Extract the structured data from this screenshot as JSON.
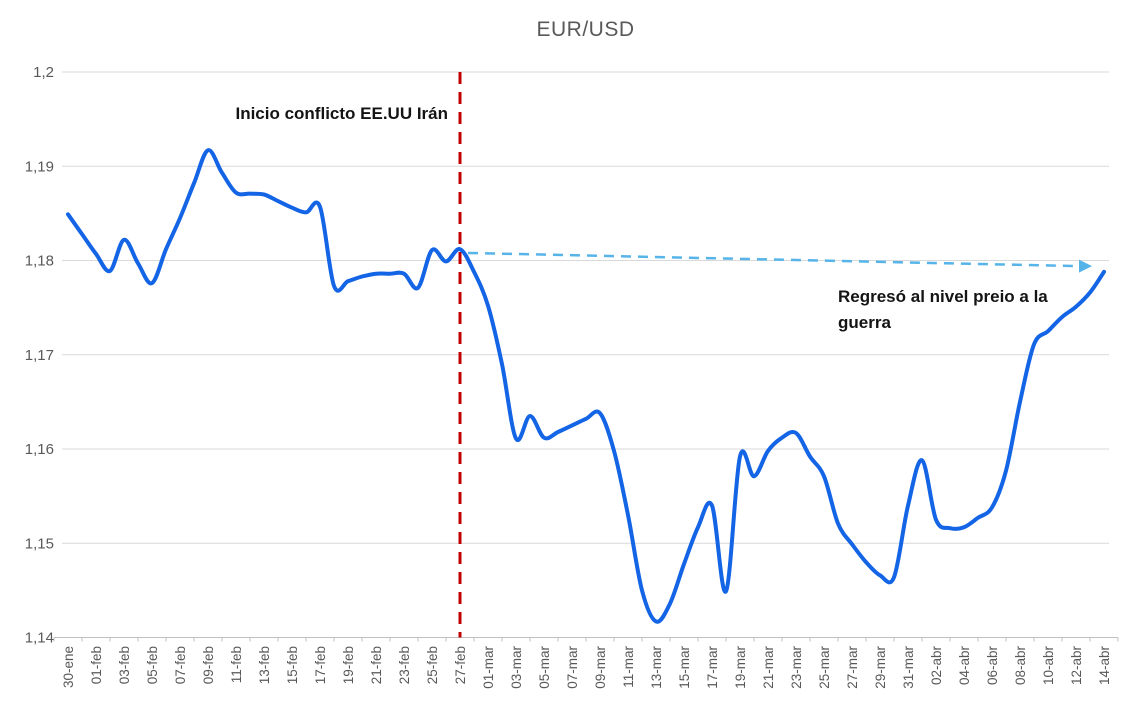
{
  "chart_data": {
    "type": "line",
    "title": "EUR/USD",
    "xlabel": "",
    "ylabel": "",
    "ylim": [
      1.14,
      1.2
    ],
    "grid": "horizontal",
    "legend": "none",
    "x_tick_every": 2,
    "yticks": {
      "values": [
        1.2,
        1.19,
        1.18,
        1.17,
        1.16,
        1.15,
        1.14
      ],
      "labels": [
        "1,2",
        "1,19",
        "1,18",
        "1,17",
        "1,16",
        "1,15",
        "1,14"
      ]
    },
    "x": [
      "30-ene",
      "31-ene",
      "01-feb",
      "02-feb",
      "03-feb",
      "04-feb",
      "05-feb",
      "06-feb",
      "07-feb",
      "08-feb",
      "09-feb",
      "10-feb",
      "11-feb",
      "12-feb",
      "13-feb",
      "14-feb",
      "15-feb",
      "16-feb",
      "17-feb",
      "18-feb",
      "19-feb",
      "20-feb",
      "21-feb",
      "22-feb",
      "23-feb",
      "24-feb",
      "25-feb",
      "26-feb",
      "27-feb",
      "28-feb",
      "01-mar",
      "02-mar",
      "03-mar",
      "04-mar",
      "05-mar",
      "06-mar",
      "07-mar",
      "08-mar",
      "09-mar",
      "10-mar",
      "11-mar",
      "12-mar",
      "13-mar",
      "14-mar",
      "15-mar",
      "16-mar",
      "17-mar",
      "18-mar",
      "19-mar",
      "20-mar",
      "21-mar",
      "22-mar",
      "23-mar",
      "24-mar",
      "25-mar",
      "26-mar",
      "27-mar",
      "28-mar",
      "29-mar",
      "30-mar",
      "31-mar",
      "01-abr",
      "02-abr",
      "03-abr",
      "04-abr",
      "05-abr",
      "06-abr",
      "07-abr",
      "08-abr",
      "09-abr",
      "10-abr",
      "11-abr",
      "12-abr",
      "13-abr",
      "14-abr"
    ],
    "values": [
      1.1849,
      1.1828,
      1.1807,
      1.1789,
      1.1822,
      1.1797,
      1.1776,
      1.1812,
      1.1845,
      1.1882,
      1.1917,
      1.1893,
      1.1872,
      1.1871,
      1.187,
      1.1863,
      1.1856,
      1.1851,
      1.1857,
      1.1773,
      1.1778,
      1.1783,
      1.1786,
      1.1786,
      1.1786,
      1.1771,
      1.1811,
      1.1799,
      1.1812,
      1.1788,
      1.1752,
      1.169,
      1.1611,
      1.1635,
      1.1612,
      1.1618,
      1.1625,
      1.1632,
      1.1638,
      1.1598,
      1.153,
      1.145,
      1.1417,
      1.1436,
      1.1478,
      1.1517,
      1.154,
      1.1449,
      1.1592,
      1.1571,
      1.1598,
      1.1612,
      1.1617,
      1.1592,
      1.1571,
      1.1521,
      1.1499,
      1.148,
      1.1466,
      1.1464,
      1.154,
      1.1588,
      1.1525,
      1.1516,
      1.1517,
      1.1527,
      1.1538,
      1.1577,
      1.165,
      1.1711,
      1.1725,
      1.174,
      1.1751,
      1.1766,
      1.1788
    ],
    "series_name": "EUR/USD",
    "series_color": "#1464E6",
    "gridline_color": "#D9D9D9",
    "axis_color": "#BFBFBF",
    "label_color": "#595959",
    "annotations": {
      "event_line": {
        "date": "27-feb",
        "text": "Inicio conflicto EE.UU Irán",
        "color": "#C00000",
        "style": "dashed-vertical"
      },
      "trend_arrow": {
        "from_date": "27-feb",
        "from_value": 1.1808,
        "to_date": "13-abr",
        "to_value": 1.1794,
        "color": "#56B4E9",
        "style": "dashed-arrow-right"
      },
      "regreso": {
        "line1": "Regresó al nivel preio a la",
        "line2": "guerra"
      }
    }
  }
}
